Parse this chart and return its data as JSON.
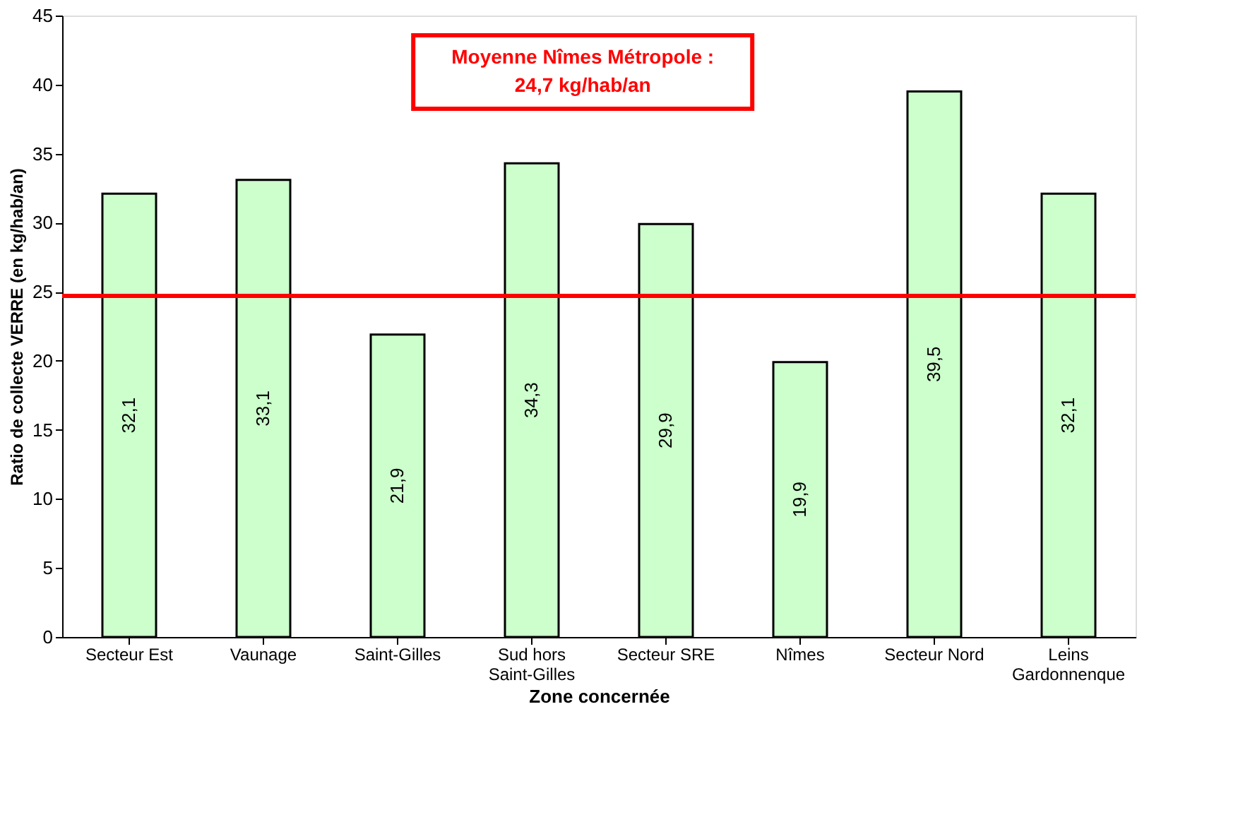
{
  "chart_data": {
    "type": "bar",
    "xlabel": "Zone concernée",
    "ylabel": "Ratio de collecte VERRE (en kg/hab/an)",
    "categories": [
      "Secteur Est",
      "Vaunage",
      "Saint-Gilles",
      "Sud hors Saint-Gilles",
      "Secteur SRE",
      "Nîmes",
      "Secteur Nord",
      "Leins Gardonnenque"
    ],
    "values": [
      32.1,
      33.1,
      21.9,
      34.3,
      29.9,
      19.9,
      39.5,
      32.1
    ],
    "value_labels": [
      "32,1",
      "33,1",
      "21,9",
      "34,3",
      "29,9",
      "19,9",
      "39,5",
      "32,1"
    ],
    "color": "#ccffcc",
    "ylim": [
      0,
      45
    ],
    "yticks": [
      0,
      5,
      10,
      15,
      20,
      25,
      30,
      35,
      40,
      45
    ],
    "grid": false,
    "ref_lines": [
      {
        "axis": "y",
        "value": 24.7,
        "label": "Moyenne Nîmes Métropole : 24,7 kg/hab/an",
        "color": "#ff0000",
        "line_style": "solid"
      }
    ]
  }
}
